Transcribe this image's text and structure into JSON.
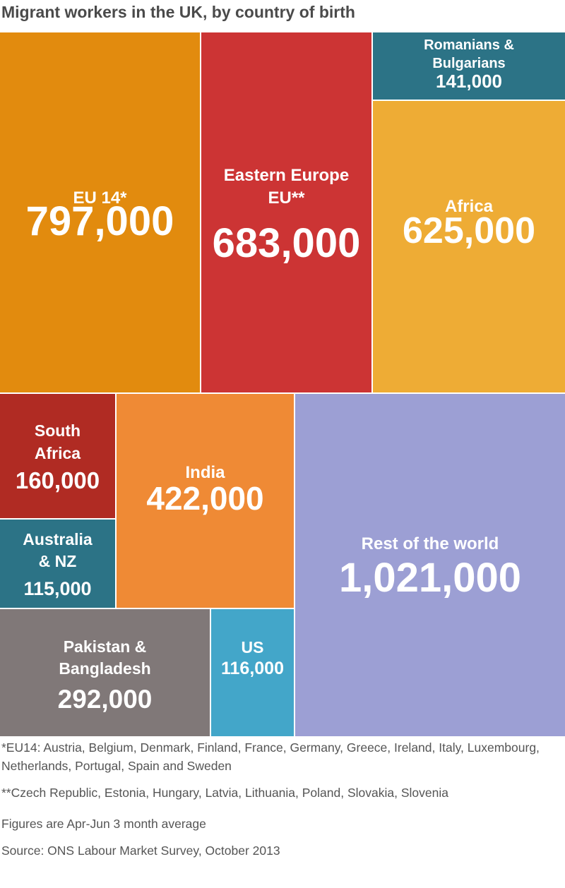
{
  "chart_data": {
    "type": "treemap",
    "title": "Migrant workers in the UK, by country of birth",
    "units": "",
    "cells": [
      {
        "label": [
          "EU 14*"
        ],
        "value": 797000,
        "value_label": "797,000",
        "color": "#e28b0e"
      },
      {
        "label": [
          "Eastern Europe",
          "EU**"
        ],
        "value": 683000,
        "value_label": "683,000",
        "color": "#cc3434"
      },
      {
        "label": [
          "Romanians &",
          "Bulgarians"
        ],
        "value": 141000,
        "value_label": "141,000",
        "color": "#2c7386"
      },
      {
        "label": [
          "Africa"
        ],
        "value": 625000,
        "value_label": "625,000",
        "color": "#eeac35"
      },
      {
        "label": [
          "South",
          "Africa"
        ],
        "value": 160000,
        "value_label": "160,000",
        "color": "#b02b23"
      },
      {
        "label": [
          "Australia",
          "& NZ"
        ],
        "value": 115000,
        "value_label": "115,000",
        "color": "#2c7386"
      },
      {
        "label": [
          "India"
        ],
        "value": 422000,
        "value_label": "422,000",
        "color": "#ef8a35"
      },
      {
        "label": [
          "Pakistan &",
          "Bangladesh"
        ],
        "value": 292000,
        "value_label": "292,000",
        "color": "#807878"
      },
      {
        "label": [
          "US"
        ],
        "value": 116000,
        "value_label": "116,000",
        "color": "#43a6c9"
      },
      {
        "label": [
          "Rest of the world"
        ],
        "value": 1021000,
        "value_label": "1,021,000",
        "color": "#9c9fd4"
      }
    ]
  },
  "notes": {
    "eu14": "*EU14: Austria, Belgium, Denmark, Finland, France, Germany, Greece, Ireland, Italy, Luxembourg, Netherlands, Portugal, Spain and Sweden",
    "eastern_eu": "**Czech Republic, Estonia, Hungary, Latvia, Lithuania, Poland, Slovakia, Slovenia",
    "figures": "Figures are Apr-Jun 3 month average",
    "source": "Source: ONS Labour Market Survey, October 2013"
  }
}
